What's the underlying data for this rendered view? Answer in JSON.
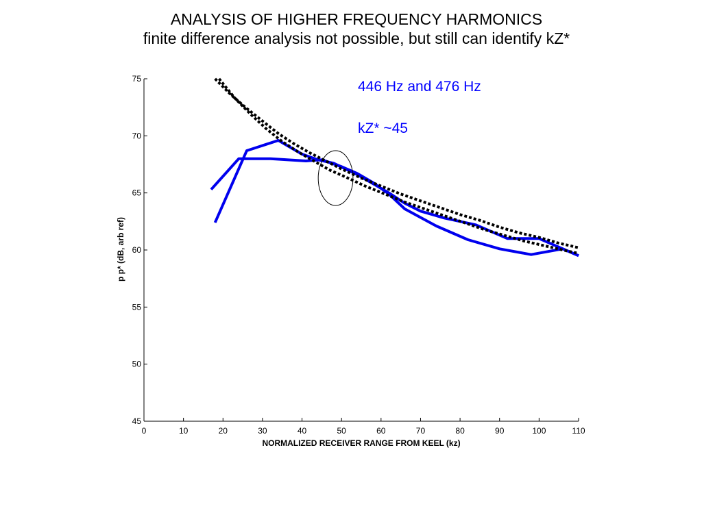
{
  "title": {
    "line1": "ANALYSIS OF HIGHER FREQUENCY HARMONICS",
    "line2": "finite difference analysis not possible, but still can identify kZ*"
  },
  "annotations": {
    "freq": "446 Hz and 476  Hz",
    "kz": "kZ* ~45",
    "color": "#0000ff"
  },
  "chart_data": {
    "type": "line",
    "xlabel": "NORMALIZED RECEIVER RANGE FROM KEEL (kz)",
    "ylabel": "p p* (dB, arb ref)",
    "xlim": [
      0,
      110
    ],
    "ylim": [
      45,
      75
    ],
    "xticks": [
      0,
      10,
      20,
      30,
      40,
      50,
      60,
      70,
      80,
      90,
      100,
      110
    ],
    "yticks": [
      45,
      50,
      55,
      60,
      65,
      70,
      75
    ],
    "grid": false,
    "series": [
      {
        "color": "#0000ee",
        "style": "solid",
        "x": [
          17,
          24,
          32,
          41,
          45,
          50,
          54,
          58,
          62,
          66,
          74,
          82,
          90,
          98,
          106,
          110
        ],
        "y": [
          65.3,
          68.0,
          68.0,
          67.8,
          67.9,
          67.3,
          66.7,
          65.9,
          64.9,
          63.6,
          62.1,
          60.9,
          60.1,
          59.6,
          60.1,
          59.5
        ]
      },
      {
        "color": "#0000ee",
        "style": "solid",
        "x": [
          18,
          26,
          34,
          40,
          44,
          48,
          54,
          58,
          62,
          66,
          70,
          76,
          84,
          92,
          100,
          110
        ],
        "y": [
          62.4,
          68.7,
          69.6,
          68.4,
          67.9,
          67.6,
          66.6,
          65.8,
          65.0,
          64.1,
          63.4,
          62.8,
          62.2,
          61.0,
          61.0,
          59.5
        ]
      },
      {
        "color": "#000000",
        "style": "dotted",
        "x": [
          18,
          22,
          26,
          30,
          34,
          38,
          42,
          46,
          50,
          55,
          60,
          65,
          70,
          75,
          80,
          85,
          90,
          95,
          100,
          105,
          110
        ],
        "y": [
          75.0,
          73.6,
          72.4,
          71.3,
          70.2,
          69.3,
          68.5,
          67.8,
          67.1,
          66.3,
          65.6,
          64.9,
          64.3,
          63.7,
          63.1,
          62.6,
          62.0,
          61.5,
          61.1,
          60.6,
          60.2
        ]
      },
      {
        "color": "#000000",
        "style": "dotted",
        "x": [
          19,
          23,
          27,
          31,
          35,
          39,
          43,
          47,
          51,
          56,
          61,
          66,
          71,
          76,
          81,
          86,
          91,
          96,
          101,
          106,
          110
        ],
        "y": [
          75.0,
          73.3,
          71.9,
          70.6,
          69.5,
          68.6,
          67.8,
          67.0,
          66.4,
          65.6,
          64.9,
          64.2,
          63.6,
          63.0,
          62.4,
          61.8,
          61.3,
          60.8,
          60.4,
          60.0,
          59.7
        ]
      }
    ]
  },
  "highlight_ellipse": {
    "cx": 48.5,
    "cy": 66.3,
    "rx": 4.4,
    "ry": 2.4
  }
}
